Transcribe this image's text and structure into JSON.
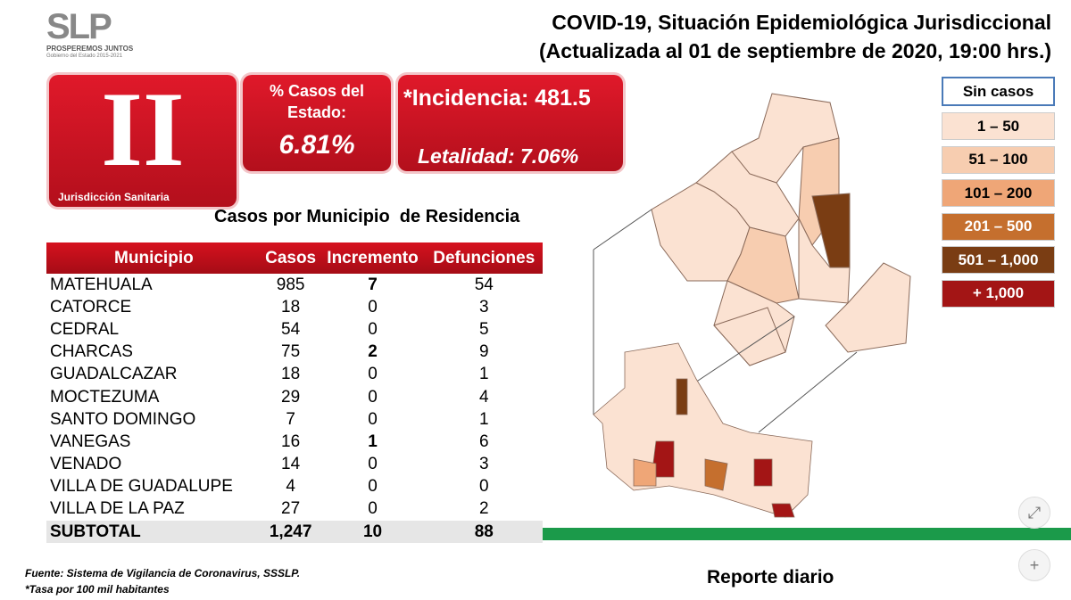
{
  "header": {
    "logo": "SLP",
    "logo_tagline": "PROSPEREMOS JUNTOS",
    "logo_subtitle": "Gobierno del Estado 2015-2021",
    "title": "COVID-19, Situación Epidemiológica Jurisdiccional",
    "subtitle": "(Actualizada al 01 de septiembre de 2020, 19:00 hrs.)"
  },
  "cards": {
    "jurisdiction": "II",
    "jurisdiction_label": "Jurisdicción Sanitaria",
    "share_label": "% Casos del Estado:",
    "share_value": "6.81%",
    "incidence": "*Incidencia: 481.5",
    "lethality": "Letalidad: 7.06%"
  },
  "table": {
    "title": "Casos por Municipio  de Residencia",
    "columns": [
      "Municipio",
      "Casos",
      "Incremento",
      "Defunciones"
    ],
    "rows": [
      [
        "MATEHUALA",
        "985",
        "7",
        "54"
      ],
      [
        "CATORCE",
        "18",
        "0",
        "3"
      ],
      [
        "CEDRAL",
        "54",
        "0",
        "5"
      ],
      [
        "CHARCAS",
        "75",
        "2",
        "9"
      ],
      [
        "GUADALCAZAR",
        "18",
        "0",
        "1"
      ],
      [
        "MOCTEZUMA",
        "29",
        "0",
        "4"
      ],
      [
        "SANTO DOMINGO",
        "7",
        "0",
        "1"
      ],
      [
        "VANEGAS",
        "16",
        "1",
        "6"
      ],
      [
        "VENADO",
        "14",
        "0",
        "3"
      ],
      [
        "VILLA DE GUADALUPE",
        "4",
        "0",
        "0"
      ],
      [
        "VILLA DE LA PAZ",
        "27",
        "0",
        "2"
      ]
    ],
    "total": [
      "SUBTOTAL",
      "1,247",
      "10",
      "88"
    ]
  },
  "legend": [
    {
      "label": "Sin casos",
      "color": "#ffffff"
    },
    {
      "label": "1 – 50",
      "color": "#fbe2d2"
    },
    {
      "label": "51 – 100",
      "color": "#f7cdb0"
    },
    {
      "label": "101 – 200",
      "color": "#efa677"
    },
    {
      "label": "201 – 500",
      "color": "#c56f2e"
    },
    {
      "label": "501 – 1,000",
      "color": "#7a3d13"
    },
    {
      "label": "+ 1,000",
      "color": "#a31515"
    }
  ],
  "footer": {
    "source": "Fuente: Sistema de Vigilancia de Coronavirus, SSSLP.",
    "note": "*Tasa por 100 mil habitantes",
    "report": "Reporte diario"
  }
}
